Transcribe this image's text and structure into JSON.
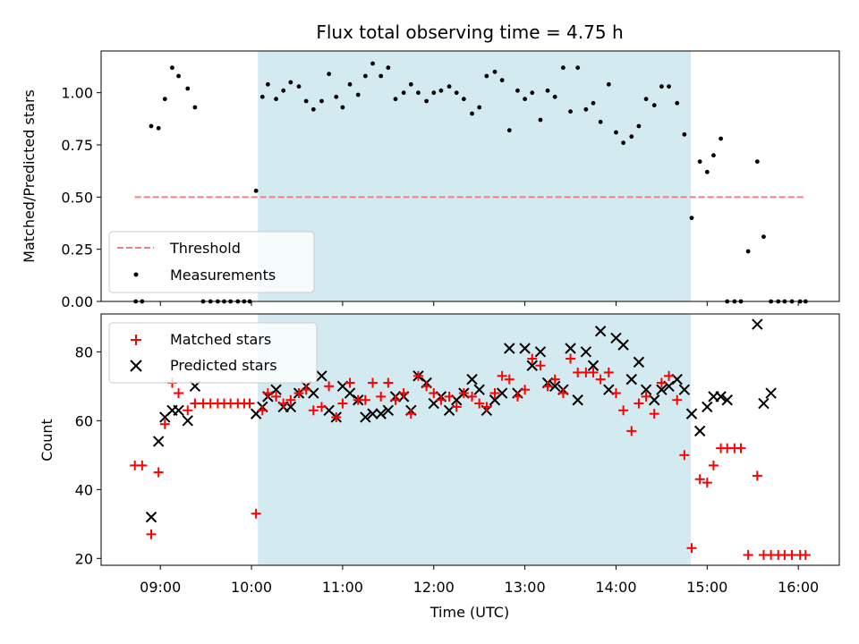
{
  "figure": {
    "title": "Flux total observing time = 4.75 h"
  },
  "chart_data": [
    {
      "type": "scatter",
      "panel": "top",
      "ylabel": "Matched/Predicted stars",
      "xlabel": "",
      "x_unit": "hours UTC",
      "xlim": [
        8.35,
        16.45
      ],
      "ylim": [
        0,
        1.2
      ],
      "yticks": [
        0.0,
        0.25,
        0.5,
        0.75,
        1.0
      ],
      "ytick_labels": [
        "0.00",
        "0.25",
        "0.50",
        "0.75",
        "1.00"
      ],
      "shaded_interval": [
        10.07,
        14.82
      ],
      "shaded_color": "#d3eaf0",
      "threshold": {
        "name": "Threshold",
        "y": 0.5,
        "x_range": [
          8.72,
          16.08
        ],
        "color": "#f08080"
      },
      "legend": {
        "location": "lower-left",
        "entries": [
          "Threshold",
          "Measurements"
        ]
      },
      "series": [
        {
          "name": "Measurements",
          "marker": "dot",
          "color": "#000000",
          "x": [
            8.73,
            8.8,
            8.9,
            8.98,
            9.05,
            9.13,
            9.2,
            9.3,
            9.38,
            9.47,
            9.55,
            9.63,
            9.7,
            9.77,
            9.85,
            9.92,
            9.98,
            10.05,
            10.12,
            10.18,
            10.27,
            10.35,
            10.43,
            10.52,
            10.6,
            10.68,
            10.77,
            10.85,
            10.93,
            11.0,
            11.08,
            11.17,
            11.25,
            11.33,
            11.42,
            11.5,
            11.58,
            11.67,
            11.75,
            11.83,
            11.92,
            12.0,
            12.08,
            12.17,
            12.25,
            12.33,
            12.42,
            12.5,
            12.58,
            12.67,
            12.75,
            12.83,
            12.92,
            13.0,
            13.08,
            13.17,
            13.25,
            13.33,
            13.42,
            13.5,
            13.58,
            13.67,
            13.75,
            13.83,
            13.92,
            14.0,
            14.08,
            14.17,
            14.25,
            14.33,
            14.42,
            14.5,
            14.58,
            14.67,
            14.75,
            14.83,
            14.92,
            15.0,
            15.07,
            15.15,
            15.22,
            15.3,
            15.37,
            15.45,
            15.55,
            15.62,
            15.7,
            15.78,
            15.85,
            15.93,
            16.02,
            16.08
          ],
          "y": [
            0.0,
            0.0,
            0.84,
            0.83,
            0.97,
            1.12,
            1.08,
            1.02,
            0.93,
            0.0,
            0.0,
            0.0,
            0.0,
            0.0,
            0.0,
            0.0,
            0.0,
            0.53,
            0.98,
            1.04,
            0.97,
            1.01,
            1.05,
            1.03,
            0.96,
            0.92,
            0.96,
            1.09,
            0.98,
            0.93,
            1.04,
            0.99,
            1.08,
            1.14,
            1.08,
            1.12,
            0.97,
            1.0,
            1.04,
            1.0,
            0.96,
            1.0,
            1.01,
            1.03,
            1.0,
            0.97,
            0.9,
            0.93,
            1.08,
            1.1,
            1.06,
            0.82,
            1.01,
            0.97,
            1.0,
            0.87,
            1.01,
            0.98,
            1.12,
            0.91,
            1.12,
            0.92,
            0.95,
            0.86,
            1.04,
            0.81,
            0.76,
            0.79,
            0.84,
            0.97,
            0.94,
            1.03,
            1.03,
            0.95,
            0.8,
            0.4,
            0.67,
            0.62,
            0.7,
            0.78,
            0.0,
            0.0,
            0.0,
            0.24,
            0.67,
            0.31,
            0.0,
            0.0,
            0.0,
            0.0,
            0.0,
            0.0
          ]
        }
      ]
    },
    {
      "type": "scatter",
      "panel": "bottom",
      "xlabel": "Time (UTC)",
      "ylabel": "Count",
      "x_unit": "hours UTC",
      "xlim": [
        8.35,
        16.45
      ],
      "ylim": [
        18,
        91
      ],
      "xticks": [
        9,
        10,
        11,
        12,
        13,
        14,
        15,
        16
      ],
      "xtick_labels": [
        "09:00",
        "10:00",
        "11:00",
        "12:00",
        "13:00",
        "14:00",
        "15:00",
        "16:00"
      ],
      "yticks": [
        20,
        40,
        60,
        80
      ],
      "ytick_labels": [
        "20",
        "40",
        "60",
        "80"
      ],
      "shaded_interval": [
        10.07,
        14.82
      ],
      "shaded_color": "#d3eaf0",
      "legend": {
        "location": "upper-left",
        "entries": [
          "Matched stars",
          "Predicted stars"
        ]
      },
      "series": [
        {
          "name": "Matched stars",
          "marker": "plus",
          "color": "#ff0000",
          "x": [
            8.72,
            8.8,
            8.9,
            8.98,
            9.05,
            9.13,
            9.2,
            9.3,
            9.38,
            9.47,
            9.55,
            9.63,
            9.7,
            9.77,
            9.85,
            9.92,
            9.98,
            10.05,
            10.12,
            10.18,
            10.27,
            10.35,
            10.43,
            10.52,
            10.6,
            10.68,
            10.77,
            10.85,
            10.93,
            11.0,
            11.08,
            11.17,
            11.25,
            11.33,
            11.42,
            11.5,
            11.58,
            11.67,
            11.75,
            11.83,
            11.92,
            12.0,
            12.08,
            12.17,
            12.25,
            12.33,
            12.42,
            12.5,
            12.58,
            12.67,
            12.75,
            12.83,
            12.92,
            13.0,
            13.08,
            13.17,
            13.25,
            13.33,
            13.42,
            13.5,
            13.58,
            13.67,
            13.75,
            13.83,
            13.92,
            14.0,
            14.08,
            14.17,
            14.25,
            14.33,
            14.42,
            14.5,
            14.58,
            14.67,
            14.75,
            14.83,
            14.92,
            15.0,
            15.07,
            15.15,
            15.22,
            15.3,
            15.37,
            15.45,
            15.55,
            15.62,
            15.7,
            15.78,
            15.85,
            15.93,
            16.02,
            16.08
          ],
          "y": [
            47,
            47,
            27,
            45,
            59,
            71,
            68,
            63,
            65,
            65,
            65,
            65,
            65,
            65,
            65,
            65,
            65,
            33,
            63,
            68,
            67,
            65,
            66,
            68,
            69,
            63,
            64,
            70,
            61,
            65,
            71,
            66,
            66,
            71,
            67,
            71,
            66,
            68,
            62,
            73,
            70,
            68,
            66,
            67,
            64,
            68,
            67,
            65,
            64,
            68,
            73,
            72,
            67,
            69,
            78,
            76,
            70,
            72,
            68,
            78,
            74,
            74,
            74,
            72,
            74,
            68,
            63,
            57,
            65,
            67,
            62,
            71,
            73,
            66,
            50,
            23,
            43,
            42,
            47,
            52,
            52,
            52,
            52,
            21,
            44,
            21,
            21,
            21,
            21,
            21,
            21,
            21
          ],
          "note": ""
        },
        {
          "name": "Predicted stars",
          "marker": "x",
          "color": "#000000",
          "x": [
            8.9,
            8.98,
            9.05,
            9.13,
            9.2,
            9.3,
            9.38,
            10.05,
            10.12,
            10.18,
            10.27,
            10.35,
            10.43,
            10.52,
            10.6,
            10.68,
            10.77,
            10.85,
            10.93,
            11.0,
            11.08,
            11.17,
            11.25,
            11.33,
            11.42,
            11.5,
            11.58,
            11.67,
            11.75,
            11.83,
            11.92,
            12.0,
            12.08,
            12.17,
            12.25,
            12.33,
            12.42,
            12.5,
            12.58,
            12.67,
            12.75,
            12.83,
            12.92,
            13.0,
            13.08,
            13.17,
            13.25,
            13.33,
            13.42,
            13.5,
            13.58,
            13.67,
            13.75,
            13.83,
            13.92,
            14.0,
            14.08,
            14.17,
            14.25,
            14.33,
            14.42,
            14.5,
            14.58,
            14.67,
            14.75,
            14.83,
            14.92,
            15.0,
            15.07,
            15.15,
            15.22,
            15.55,
            15.62,
            15.7
          ],
          "y": [
            32,
            54,
            61,
            63,
            63,
            60,
            70,
            62,
            64,
            67,
            69,
            64,
            64,
            68,
            70,
            68,
            73,
            63,
            61,
            70,
            68,
            66,
            61,
            62,
            62,
            63,
            67,
            67,
            63,
            73,
            71,
            65,
            67,
            63,
            66,
            68,
            72,
            69,
            63,
            66,
            68,
            81,
            68,
            81,
            76,
            80,
            71,
            70,
            69,
            81,
            66,
            80,
            76,
            86,
            69,
            84,
            82,
            72,
            77,
            69,
            66,
            69,
            70,
            72,
            69,
            62,
            57,
            64,
            67,
            67,
            66,
            88,
            65,
            68
          ]
        }
      ]
    }
  ]
}
